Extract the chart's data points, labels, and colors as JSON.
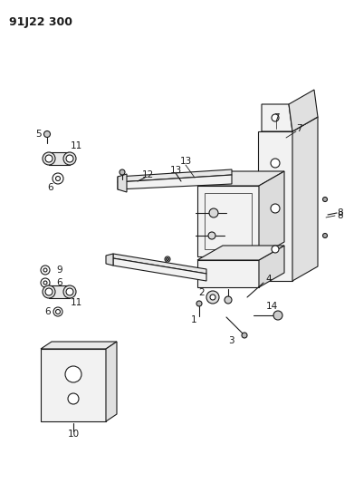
{
  "title": "91J22 300",
  "bg": "#ffffff",
  "lc": "#1a1a1a",
  "lw": 0.8,
  "fs": 7.5,
  "fig_w": 3.91,
  "fig_h": 5.33,
  "dpi": 100
}
